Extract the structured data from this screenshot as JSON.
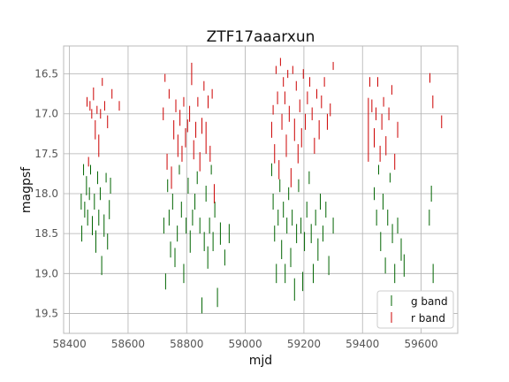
{
  "chart_data": {
    "type": "scatter",
    "title": "ZTF17aaarxun",
    "xlabel": "mjd",
    "ylabel": "magpsf",
    "xlim": [
      58380,
      59725
    ],
    "ylim": [
      19.75,
      16.15
    ],
    "y_inverted": true,
    "grid": true,
    "legend_position": "bottom-right",
    "x_ticks": [
      "58400",
      "58600",
      "58800",
      "59000",
      "59200",
      "59400",
      "59600"
    ],
    "x_tick_values": [
      58400,
      58600,
      58800,
      59000,
      59200,
      59400,
      59600
    ],
    "y_ticks": [
      "16.5",
      "17.0",
      "17.5",
      "18.0",
      "18.5",
      "19.0",
      "19.5"
    ],
    "y_tick_values": [
      16.5,
      17.0,
      17.5,
      18.0,
      18.5,
      19.0,
      19.5
    ],
    "marker": "|",
    "series": [
      {
        "name": "g band",
        "color": "#006400",
        "x": [
          58440,
          58442,
          58448,
          58452,
          58458,
          58462,
          58468,
          58472,
          58478,
          58485,
          58490,
          58496,
          58500,
          58505,
          58510,
          58518,
          58525,
          58530,
          58536,
          58540,
          58722,
          58728,
          58735,
          58740,
          58745,
          58752,
          58760,
          58768,
          58775,
          58782,
          58790,
          58798,
          58805,
          58812,
          58820,
          58828,
          58836,
          58845,
          58852,
          58860,
          58866,
          58872,
          58878,
          58884,
          58890,
          58896,
          58905,
          58915,
          58930,
          58945,
          59090,
          59095,
          59100,
          59106,
          59112,
          59118,
          59124,
          59130,
          59136,
          59142,
          59148,
          59155,
          59160,
          59168,
          59175,
          59182,
          59190,
          59196,
          59202,
          59210,
          59218,
          59225,
          59232,
          59240,
          59248,
          59256,
          59265,
          59275,
          59285,
          59300,
          59440,
          59448,
          59455,
          59462,
          59470,
          59478,
          59486,
          59494,
          59502,
          59510,
          59520,
          59532,
          59542,
          59628,
          59635,
          59641
        ],
        "y": [
          18.1,
          18.5,
          17.7,
          18.2,
          17.9,
          18.3,
          18.0,
          17.7,
          18.4,
          18.1,
          18.6,
          17.8,
          18.3,
          18.0,
          18.9,
          18.4,
          17.8,
          18.6,
          18.2,
          17.9,
          18.4,
          19.1,
          17.9,
          18.3,
          18.7,
          18.1,
          18.8,
          18.5,
          17.7,
          18.2,
          19.0,
          18.4,
          17.9,
          18.6,
          18.3,
          18.1,
          17.8,
          18.4,
          19.4,
          18.6,
          18.0,
          18.8,
          18.4,
          17.7,
          18.6,
          18.2,
          19.3,
          18.5,
          18.8,
          18.5,
          17.7,
          18.1,
          18.5,
          19.0,
          18.3,
          17.9,
          18.7,
          18.2,
          19.0,
          18.4,
          18.0,
          18.8,
          18.3,
          19.2,
          18.5,
          17.9,
          18.4,
          19.1,
          18.6,
          18.2,
          17.8,
          18.5,
          19.0,
          18.3,
          18.7,
          18.1,
          18.5,
          18.2,
          18.9,
          18.4,
          18.0,
          18.3,
          17.7,
          18.6,
          18.1,
          18.9,
          18.3,
          17.8,
          18.5,
          19.0,
          18.4,
          18.7,
          18.9,
          18.3,
          18.0,
          19.0
        ],
        "err": [
          0.1,
          0.1,
          0.07,
          0.1,
          0.12,
          0.1,
          0.08,
          0.06,
          0.12,
          0.1,
          0.14,
          0.08,
          0.1,
          0.08,
          0.12,
          0.14,
          0.06,
          0.1,
          0.12,
          0.1,
          0.1,
          0.1,
          0.08,
          0.1,
          0.1,
          0.1,
          0.12,
          0.1,
          0.06,
          0.1,
          0.12,
          0.1,
          0.1,
          0.14,
          0.1,
          0.1,
          0.08,
          0.1,
          0.1,
          0.12,
          0.1,
          0.14,
          0.1,
          0.06,
          0.12,
          0.1,
          0.12,
          0.14,
          0.1,
          0.12,
          0.08,
          0.1,
          0.1,
          0.12,
          0.1,
          0.08,
          0.12,
          0.1,
          0.12,
          0.1,
          0.08,
          0.12,
          0.1,
          0.14,
          0.12,
          0.08,
          0.1,
          0.12,
          0.12,
          0.1,
          0.08,
          0.12,
          0.12,
          0.1,
          0.14,
          0.1,
          0.1,
          0.1,
          0.12,
          0.1,
          0.08,
          0.1,
          0.06,
          0.12,
          0.1,
          0.1,
          0.1,
          0.06,
          0.12,
          0.12,
          0.1,
          0.14,
          0.14,
          0.1,
          0.1,
          0.12
        ]
      },
      {
        "name": "r band",
        "color": "#cc0000",
        "x": [
          58460,
          58465,
          58470,
          58476,
          58482,
          58488,
          58494,
          58500,
          58506,
          58512,
          58520,
          58530,
          58545,
          58570,
          58720,
          58726,
          58733,
          58740,
          58748,
          58756,
          58763,
          58770,
          58777,
          58784,
          58790,
          58796,
          58803,
          58810,
          58817,
          58824,
          58831,
          58838,
          58845,
          58852,
          58859,
          58866,
          58873,
          58880,
          58887,
          58894,
          59090,
          59095,
          59100,
          59105,
          59110,
          59115,
          59120,
          59125,
          59130,
          59135,
          59140,
          59145,
          59150,
          59156,
          59162,
          59168,
          59174,
          59180,
          59186,
          59192,
          59198,
          59205,
          59212,
          59220,
          59228,
          59236,
          59244,
          59252,
          59260,
          59270,
          59280,
          59290,
          59300,
          59420,
          59425,
          59432,
          59440,
          59446,
          59452,
          59460,
          59466,
          59472,
          59480,
          59490,
          59500,
          59510,
          59520,
          59630,
          59640,
          59670
        ],
        "y": [
          16.85,
          17.6,
          16.9,
          17.0,
          16.75,
          17.2,
          16.95,
          17.4,
          17.0,
          16.6,
          16.9,
          17.1,
          16.75,
          16.9,
          17.0,
          16.55,
          17.6,
          16.75,
          17.8,
          17.2,
          16.9,
          17.4,
          17.05,
          17.5,
          16.85,
          17.3,
          17.15,
          17.0,
          16.5,
          17.45,
          17.2,
          16.85,
          17.6,
          17.15,
          16.65,
          17.3,
          16.85,
          17.5,
          16.75,
          18.0,
          17.2,
          16.95,
          17.5,
          16.45,
          16.8,
          17.7,
          16.35,
          17.1,
          16.6,
          16.8,
          17.4,
          16.5,
          17.0,
          17.8,
          16.45,
          17.2,
          16.65,
          17.5,
          16.9,
          17.3,
          16.5,
          17.1,
          16.8,
          16.6,
          17.0,
          17.4,
          16.75,
          17.2,
          16.85,
          16.6,
          17.1,
          16.95,
          16.4,
          17.2,
          16.6,
          16.9,
          17.3,
          17.0,
          16.6,
          17.5,
          17.1,
          16.85,
          17.4,
          17.0,
          16.7,
          17.6,
          17.2,
          16.55,
          16.85,
          17.1
        ],
        "err": [
          0.06,
          0.06,
          0.06,
          0.06,
          0.08,
          0.12,
          0.05,
          0.14,
          0.06,
          0.05,
          0.06,
          0.08,
          0.06,
          0.06,
          0.08,
          0.05,
          0.1,
          0.06,
          0.14,
          0.12,
          0.08,
          0.14,
          0.1,
          0.1,
          0.06,
          0.12,
          0.08,
          0.1,
          0.14,
          0.12,
          0.1,
          0.06,
          0.12,
          0.1,
          0.06,
          0.2,
          0.08,
          0.1,
          0.06,
          0.12,
          0.1,
          0.06,
          0.12,
          0.05,
          0.08,
          0.12,
          0.05,
          0.1,
          0.06,
          0.08,
          0.14,
          0.05,
          0.1,
          0.12,
          0.05,
          0.14,
          0.06,
          0.12,
          0.08,
          0.12,
          0.06,
          0.1,
          0.08,
          0.06,
          0.08,
          0.1,
          0.06,
          0.12,
          0.08,
          0.06,
          0.1,
          0.08,
          0.05,
          0.4,
          0.06,
          0.08,
          0.12,
          0.08,
          0.06,
          0.1,
          0.1,
          0.06,
          0.12,
          0.08,
          0.06,
          0.1,
          0.1,
          0.06,
          0.08,
          0.08
        ]
      }
    ]
  }
}
